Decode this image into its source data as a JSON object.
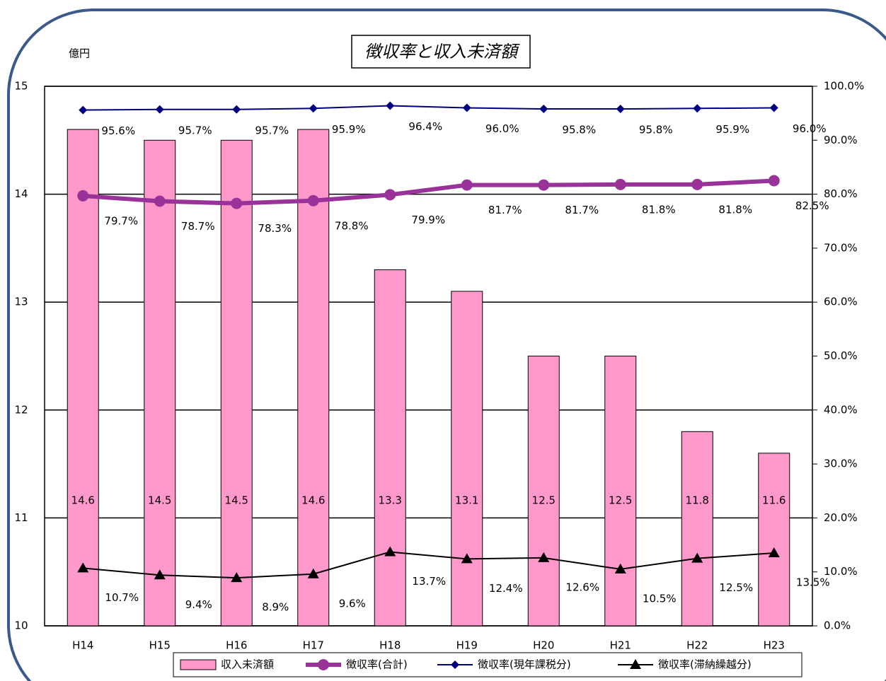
{
  "chart_data": {
    "type": "bar_line",
    "title": "徴収率と収入未済額",
    "y_label": "億円",
    "categories": [
      "H14",
      "H15",
      "H16",
      "H17",
      "H18",
      "H19",
      "H20",
      "H21",
      "H22",
      "H23"
    ],
    "ylim": [
      10,
      15
    ],
    "yticks": [
      10,
      11,
      12,
      13,
      14,
      15
    ],
    "y2lim": [
      0,
      100
    ],
    "y2ticks": [
      {
        "value": 0,
        "label": "0.0%"
      },
      {
        "value": 10,
        "label": "10.0%"
      },
      {
        "value": 20,
        "label": "20.0%"
      },
      {
        "value": 30,
        "label": "30.0%"
      },
      {
        "value": 40,
        "label": "40.0%"
      },
      {
        "value": 50,
        "label": "50.0%"
      },
      {
        "value": 60,
        "label": "60.0%"
      },
      {
        "value": 70,
        "label": "70.0%"
      },
      {
        "value": 80,
        "label": "80.0%"
      },
      {
        "value": 90,
        "label": "90.0%"
      },
      {
        "value": 100,
        "label": "100.0%"
      }
    ],
    "grid": true,
    "series": [
      {
        "name": "収入未済額",
        "type": "bar",
        "color": "#ff99cc",
        "values": [
          14.6,
          14.5,
          14.5,
          14.6,
          13.3,
          13.1,
          12.5,
          12.5,
          11.8,
          11.6
        ]
      },
      {
        "name": "徴収率(合計)",
        "type": "line",
        "axis": "y2",
        "color": "#993399",
        "values": [
          79.7,
          78.7,
          78.3,
          78.8,
          79.9,
          81.7,
          81.7,
          81.8,
          81.8,
          82.5
        ],
        "value_labels": [
          "79.7%",
          "78.7%",
          "78.3%",
          "78.8%",
          "79.9%",
          "81.7%",
          "81.7%",
          "81.8%",
          "81.8%",
          "82.5%"
        ]
      },
      {
        "name": "徴収率(現年課税分)",
        "type": "line",
        "axis": "y2",
        "color": "#000080",
        "values": [
          95.6,
          95.7,
          95.7,
          95.9,
          96.4,
          96.0,
          95.8,
          95.8,
          95.9,
          96.0
        ],
        "value_labels": [
          "95.6%",
          "95.7%",
          "95.7%",
          "95.9%",
          "96.4%",
          "96.0%",
          "95.8%",
          "95.8%",
          "95.9%",
          "96.0%"
        ]
      },
      {
        "name": "徴収率(滞納繰越分)",
        "type": "line",
        "axis": "y2",
        "color": "#000000",
        "values": [
          10.7,
          9.4,
          8.9,
          9.6,
          13.7,
          12.4,
          12.6,
          10.5,
          12.5,
          13.5
        ],
        "value_labels": [
          "10.7%",
          "9.4%",
          "8.9%",
          "9.6%",
          "13.7%",
          "12.4%",
          "12.6%",
          "10.5%",
          "12.5%",
          "13.5%"
        ]
      }
    ]
  }
}
